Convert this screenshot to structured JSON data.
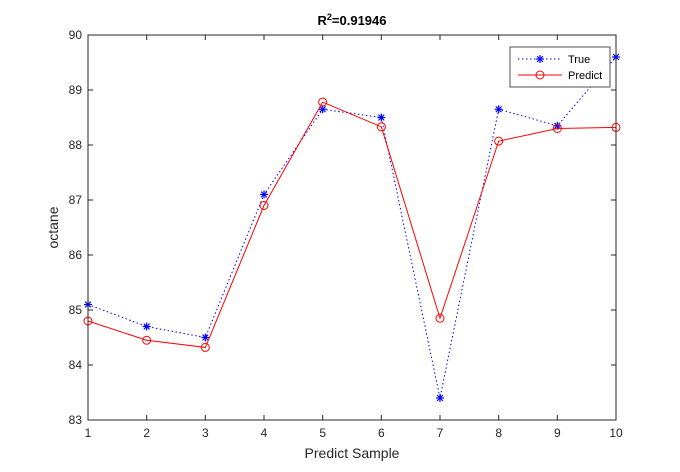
{
  "chart_data": {
    "type": "line",
    "title_main": "R",
    "title_sup": "2",
    "title_rest": "=0.91946",
    "xlabel": "Predict Sample",
    "ylabel": "octane",
    "x": [
      1,
      2,
      3,
      4,
      5,
      6,
      7,
      8,
      9,
      10
    ],
    "xlim": [
      1,
      10
    ],
    "ylim": [
      83,
      90
    ],
    "xticks": [
      1,
      2,
      3,
      4,
      5,
      6,
      7,
      8,
      9,
      10
    ],
    "yticks": [
      83,
      84,
      85,
      86,
      87,
      88,
      89,
      90
    ],
    "grid": false,
    "legend_position": "top-right",
    "series": [
      {
        "name": "True",
        "color": "#0000ff",
        "line_style": "dotted",
        "marker": "asterisk",
        "values": [
          85.1,
          84.7,
          84.5,
          87.1,
          88.65,
          88.5,
          83.4,
          88.65,
          88.35,
          89.6
        ]
      },
      {
        "name": "Predict",
        "color": "#ff0000",
        "line_style": "solid",
        "marker": "circle",
        "values": [
          84.8,
          84.45,
          84.32,
          86.9,
          88.78,
          88.33,
          84.85,
          88.07,
          88.3,
          88.32
        ]
      }
    ]
  }
}
